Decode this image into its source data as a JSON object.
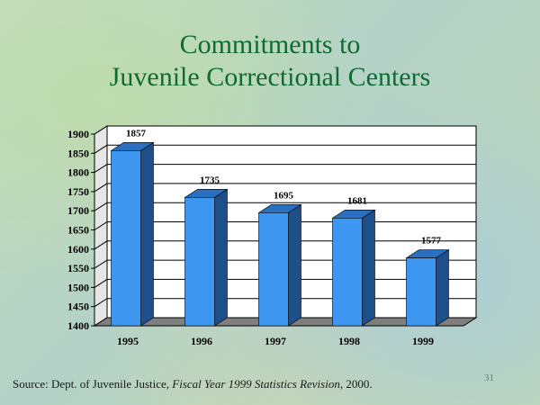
{
  "slide": {
    "title_line1": "Commitments to",
    "title_line2": "Juvenile Correctional Centers",
    "source_prefix": "Source: Dept. of Juvenile Justice, ",
    "source_italic": "Fiscal Year 1999 Statistics Revision",
    "source_suffix": ", 2000.",
    "page_number": "31"
  },
  "chart_data": {
    "type": "bar",
    "categories": [
      "1995",
      "1996",
      "1997",
      "1998",
      "1999"
    ],
    "values": [
      1857,
      1735,
      1695,
      1681,
      1577
    ],
    "data_labels": [
      "1857",
      "1735",
      "1695",
      "1681",
      "1577"
    ],
    "ylim": [
      1400,
      1900
    ],
    "yticks": [
      1400,
      1450,
      1500,
      1550,
      1600,
      1650,
      1700,
      1750,
      1800,
      1850,
      1900
    ],
    "grid": true,
    "legend": "none",
    "colors": {
      "bar_front": "#3d97f0",
      "bar_side": "#1d4f8a",
      "bar_top": "#2a6fc0",
      "floor": "#7f7f7f",
      "wall": "#ffffff",
      "title": "#0e6b34"
    }
  }
}
